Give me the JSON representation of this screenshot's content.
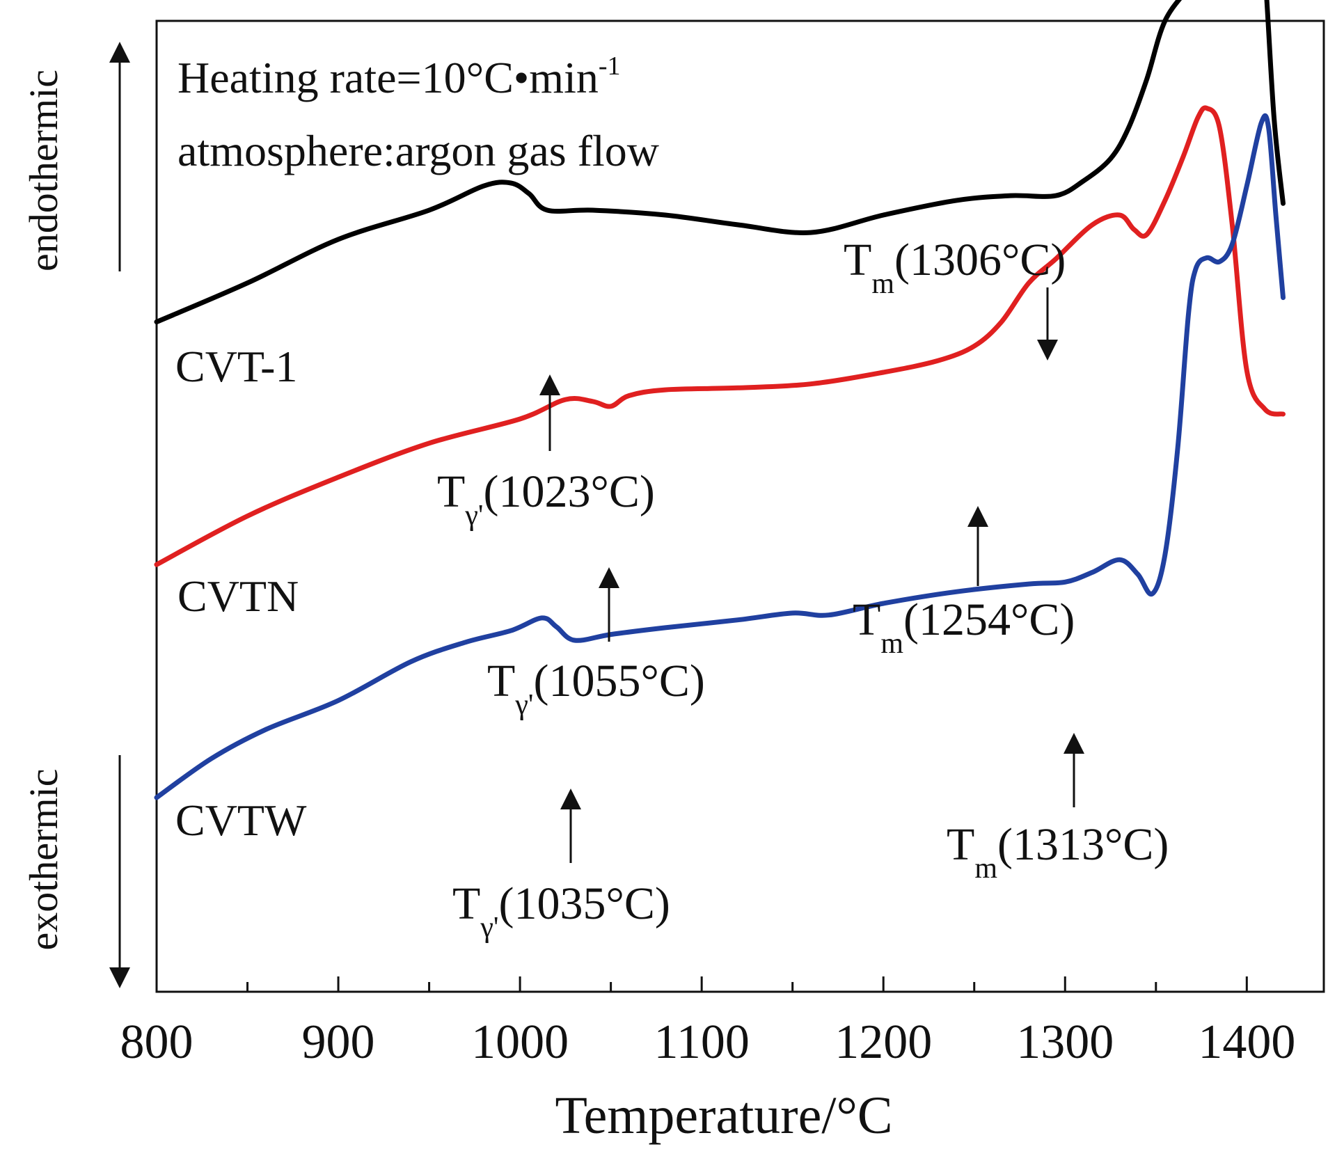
{
  "chart_data": {
    "type": "line",
    "xlabel": "Temperature/°C",
    "xlim": [
      800,
      1420
    ],
    "xticks": [
      800,
      900,
      1000,
      1100,
      1200,
      1300,
      1400
    ],
    "y_axis": {
      "top_label": "endothermic",
      "bottom_label": "exothermic",
      "tick_labels": false
    },
    "notes": [
      "Heating rate=10°C•min",
      "atmosphere:argon gas flow"
    ],
    "note_superscript": "-1",
    "grid": false,
    "legend": "none",
    "series": [
      {
        "name": "CVT-1",
        "color": "#000000",
        "points": [
          [
            800,
            0.69
          ],
          [
            850,
            0.73
          ],
          [
            900,
            0.775
          ],
          [
            950,
            0.805
          ],
          [
            980,
            0.83
          ],
          [
            995,
            0.833
          ],
          [
            1005,
            0.822
          ],
          [
            1015,
            0.805
          ],
          [
            1040,
            0.805
          ],
          [
            1080,
            0.8
          ],
          [
            1120,
            0.79
          ],
          [
            1160,
            0.782
          ],
          [
            1200,
            0.8
          ],
          [
            1240,
            0.815
          ],
          [
            1270,
            0.82
          ],
          [
            1295,
            0.82
          ],
          [
            1310,
            0.835
          ],
          [
            1325,
            0.858
          ],
          [
            1335,
            0.89
          ],
          [
            1345,
            0.94
          ],
          [
            1355,
            1.0
          ],
          [
            1370,
            1.04
          ],
          [
            1385,
            1.09
          ],
          [
            1395,
            1.15
          ],
          [
            1400,
            1.165
          ],
          [
            1405,
            1.15
          ],
          [
            1410,
            1.05
          ],
          [
            1415,
            0.9
          ],
          [
            1420,
            0.812
          ]
        ]
      },
      {
        "name": "CVTN",
        "color": "#e02020",
        "points": [
          [
            800,
            0.44
          ],
          [
            850,
            0.49
          ],
          [
            900,
            0.53
          ],
          [
            950,
            0.565
          ],
          [
            1000,
            0.59
          ],
          [
            1025,
            0.61
          ],
          [
            1040,
            0.608
          ],
          [
            1050,
            0.603
          ],
          [
            1060,
            0.614
          ],
          [
            1080,
            0.62
          ],
          [
            1120,
            0.622
          ],
          [
            1160,
            0.626
          ],
          [
            1200,
            0.638
          ],
          [
            1230,
            0.65
          ],
          [
            1250,
            0.665
          ],
          [
            1265,
            0.69
          ],
          [
            1280,
            0.73
          ],
          [
            1295,
            0.755
          ],
          [
            1315,
            0.79
          ],
          [
            1330,
            0.8
          ],
          [
            1338,
            0.785
          ],
          [
            1345,
            0.78
          ],
          [
            1355,
            0.815
          ],
          [
            1365,
            0.86
          ],
          [
            1373,
            0.9
          ],
          [
            1378,
            0.91
          ],
          [
            1385,
            0.89
          ],
          [
            1392,
            0.79
          ],
          [
            1400,
            0.64
          ],
          [
            1410,
            0.6
          ],
          [
            1420,
            0.595
          ]
        ]
      },
      {
        "name": "CVTW",
        "color": "#2040a0",
        "points": [
          [
            800,
            0.2
          ],
          [
            830,
            0.24
          ],
          [
            860,
            0.27
          ],
          [
            900,
            0.3
          ],
          [
            940,
            0.34
          ],
          [
            970,
            0.36
          ],
          [
            995,
            0.372
          ],
          [
            1012,
            0.385
          ],
          [
            1020,
            0.376
          ],
          [
            1030,
            0.362
          ],
          [
            1050,
            0.368
          ],
          [
            1080,
            0.375
          ],
          [
            1120,
            0.383
          ],
          [
            1150,
            0.39
          ],
          [
            1170,
            0.388
          ],
          [
            1200,
            0.4
          ],
          [
            1240,
            0.412
          ],
          [
            1280,
            0.42
          ],
          [
            1300,
            0.422
          ],
          [
            1315,
            0.432
          ],
          [
            1330,
            0.445
          ],
          [
            1340,
            0.43
          ],
          [
            1348,
            0.41
          ],
          [
            1355,
            0.45
          ],
          [
            1362,
            0.56
          ],
          [
            1368,
            0.7
          ],
          [
            1372,
            0.745
          ],
          [
            1378,
            0.756
          ],
          [
            1385,
            0.752
          ],
          [
            1392,
            0.77
          ],
          [
            1400,
            0.83
          ],
          [
            1408,
            0.895
          ],
          [
            1412,
            0.89
          ],
          [
            1416,
            0.8
          ],
          [
            1420,
            0.715
          ]
        ]
      }
    ],
    "annotations": [
      {
        "series": "CVT-1",
        "symbol": "T",
        "subscript": "γ'",
        "value": "(1023°C)",
        "direction": "up"
      },
      {
        "series": "CVT-1",
        "symbol": "T",
        "subscript": "m",
        "value": "(1306°C)",
        "direction": "down"
      },
      {
        "series": "CVTN",
        "symbol": "T",
        "subscript": "γ'",
        "value": "(1055°C)",
        "direction": "up"
      },
      {
        "series": "CVTN",
        "symbol": "T",
        "subscript": "m",
        "value": "(1254°C)",
        "direction": "up"
      },
      {
        "series": "CVTW",
        "symbol": "T",
        "subscript": "γ'",
        "value": "(1035°C)",
        "direction": "up"
      },
      {
        "series": "CVTW",
        "symbol": "T",
        "subscript": "m",
        "value": "(1313°C)",
        "direction": "up"
      }
    ]
  }
}
